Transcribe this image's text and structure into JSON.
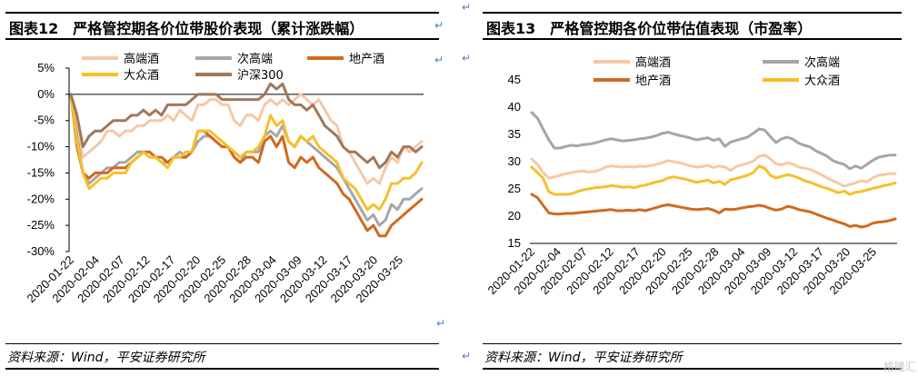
{
  "left_panel": {
    "title": "图表12　严格管控期各价位带股价表现（累计涨跌幅）",
    "source": "资料来源：Wind，平安证券研究所"
  },
  "right_panel": {
    "title": "图表13　严格管控期各价位带估值表现（市盈率）",
    "source": "资料来源：Wind，平安证券研究所"
  },
  "return_mark": "↵",
  "watermark": "格隆汇",
  "chart_data": [
    {
      "type": "line",
      "ylim": [
        -30,
        5
      ],
      "y_ticks": [
        "5%",
        "0%",
        "-5%",
        "-10%",
        "-15%",
        "-20%",
        "-25%",
        "-30%"
      ],
      "y_tick_values": [
        5,
        0,
        -5,
        -10,
        -15,
        -20,
        -25,
        -30
      ],
      "x_ticks": [
        "2020-01-22",
        "2020-02-04",
        "2020-02-07",
        "2020-02-12",
        "2020-02-17",
        "2020-02-20",
        "2020-02-25",
        "2020-02-28",
        "2020-03-04",
        "2020-03-09",
        "2020-03-12",
        "2020-03-17",
        "2020-03-20",
        "2020-03-25"
      ],
      "legend": "top",
      "series": [
        {
          "name": "高端酒",
          "color": "#f7c8a6",
          "values": [
            0,
            -6,
            -12,
            -11,
            -10,
            -9,
            -7,
            -7,
            -8,
            -7,
            -7,
            -6,
            -6,
            -5,
            -5,
            -5,
            -4,
            -5,
            -3,
            -4,
            -5,
            -2,
            -2,
            -1,
            -1,
            -2,
            -2,
            -5,
            -6,
            -4,
            -4,
            -5,
            -2,
            -1,
            -2,
            -1,
            -2,
            -1,
            0,
            -1,
            -2,
            -1,
            -3,
            -5,
            -6,
            -10,
            -11,
            -13,
            -15,
            -17,
            -16,
            -17,
            -14,
            -12,
            -13,
            -10,
            -11,
            -10,
            -9
          ]
        },
        {
          "name": "次高端",
          "color": "#a6a6a6",
          "values": [
            0,
            -8,
            -15,
            -17,
            -16,
            -15,
            -14,
            -14,
            -13,
            -13,
            -12,
            -11,
            -11,
            -12,
            -12,
            -13,
            -13,
            -12,
            -11,
            -12,
            -11,
            -9,
            -8,
            -8,
            -9,
            -10,
            -10,
            -12,
            -13,
            -11,
            -11,
            -11,
            -8,
            -7,
            -8,
            -6,
            -9,
            -10,
            -8,
            -9,
            -10,
            -11,
            -12,
            -13,
            -14,
            -16,
            -18,
            -20,
            -22,
            -24,
            -23,
            -25,
            -24,
            -21,
            -22,
            -20,
            -20,
            -19,
            -18
          ]
        },
        {
          "name": "地产酒",
          "color": "#d2691e",
          "values": [
            0,
            -10,
            -15,
            -16,
            -15,
            -15,
            -15,
            -14,
            -14,
            -14,
            -13,
            -12,
            -11,
            -11,
            -12,
            -12,
            -13,
            -12,
            -12,
            -12,
            -11,
            -7,
            -7,
            -8,
            -9,
            -10,
            -10,
            -12,
            -13,
            -12,
            -12,
            -13,
            -9,
            -8,
            -10,
            -8,
            -13,
            -14,
            -12,
            -13,
            -12,
            -14,
            -15,
            -16,
            -17,
            -19,
            -20,
            -22,
            -24,
            -26,
            -25,
            -27,
            -27,
            -25,
            -24,
            -23,
            -22,
            -21,
            -20
          ]
        },
        {
          "name": "大众酒",
          "color": "#f5c02a",
          "values": [
            0,
            -9,
            -15,
            -18,
            -17,
            -16,
            -16,
            -15,
            -15,
            -15,
            -13,
            -12,
            -11,
            -12,
            -12,
            -13,
            -14,
            -12,
            -12,
            -11,
            -11,
            -7,
            -7,
            -7,
            -8,
            -9,
            -10,
            -11,
            -12,
            -11,
            -11,
            -10,
            -8,
            -4,
            -6,
            -5,
            -9,
            -10,
            -8,
            -9,
            -8,
            -10,
            -11,
            -12,
            -13,
            -16,
            -17,
            -18,
            -20,
            -22,
            -21,
            -22,
            -20,
            -17,
            -17,
            -16,
            -16,
            -15,
            -13
          ]
        },
        {
          "name": "沪深300",
          "color": "#a0785a",
          "values": [
            0,
            -4,
            -10,
            -8,
            -7,
            -7,
            -6,
            -5,
            -5,
            -5,
            -4,
            -4,
            -3,
            -4,
            -3,
            -4,
            -2,
            -2,
            -2,
            -2,
            -1,
            0,
            0,
            0,
            0,
            -1,
            -1,
            -1,
            -1,
            -1,
            -1,
            -1,
            0,
            2,
            1,
            2,
            -1,
            -2,
            -2,
            -3,
            -2,
            -4,
            -6,
            -7,
            -8,
            -10,
            -11,
            -11,
            -12,
            -13,
            -12,
            -14,
            -13,
            -11,
            -12,
            -10,
            -10,
            -11,
            -10
          ]
        }
      ]
    },
    {
      "type": "line",
      "ylim": [
        15,
        45
      ],
      "y_ticks": [
        "45",
        "40",
        "35",
        "30",
        "25",
        "20",
        "15"
      ],
      "y_tick_values": [
        45,
        40,
        35,
        30,
        25,
        20,
        15
      ],
      "x_ticks": [
        "2020-01-22",
        "2020-02-04",
        "2020-02-07",
        "2020-02-12",
        "2020-02-17",
        "2020-02-20",
        "2020-02-25",
        "2020-02-28",
        "2020-03-04",
        "2020-03-09",
        "2020-03-12",
        "2020-03-17",
        "2020-03-20",
        "2020-03-25"
      ],
      "legend": "top",
      "series": [
        {
          "name": "高端酒",
          "color": "#f7c8a6",
          "values": [
            30.5,
            29.5,
            28,
            27,
            27.2,
            27.5,
            27.8,
            28,
            28.2,
            28.3,
            28.1,
            28.2,
            28.5,
            29,
            29.2,
            29.1,
            29,
            29.1,
            29,
            29.2,
            29.1,
            29.3,
            29.5,
            29.8,
            30.2,
            30,
            29.8,
            29.5,
            29.2,
            29,
            29.1,
            29.3,
            28.9,
            29.2,
            29,
            28.4,
            29.1,
            29.4,
            29.7,
            30.1,
            31,
            31.2,
            30.5,
            29.6,
            29.4,
            29.8,
            29.5,
            29,
            28.8,
            28.6,
            28.1,
            27.6,
            27,
            26.5,
            26,
            25.5,
            25.8,
            26.1,
            26.5,
            26.3,
            27,
            27.5,
            27.6,
            27.8,
            27.8
          ]
        },
        {
          "name": "次高端",
          "color": "#a6a6a6",
          "values": [
            39,
            38,
            36,
            34,
            32.5,
            32.5,
            32.8,
            33,
            32.9,
            33.1,
            33.2,
            33.4,
            33.7,
            34,
            34.2,
            34,
            33.8,
            33.9,
            34,
            34.2,
            34.3,
            34.5,
            34.8,
            35.2,
            35.4,
            35.1,
            34.8,
            34.6,
            34.3,
            34,
            34.2,
            34.4,
            33.9,
            34.2,
            32.8,
            33.6,
            33.9,
            34.2,
            34.5,
            35.2,
            36,
            35.8,
            34.6,
            33.5,
            34.2,
            34.5,
            34.1,
            33.4,
            33,
            32.7,
            32,
            31.5,
            31,
            30.2,
            29.8,
            29.5,
            28.7,
            29.2,
            28.8,
            29.5,
            30.2,
            30.8,
            31,
            31.2,
            31.2
          ]
        },
        {
          "name": "地产酒",
          "color": "#d2691e",
          "values": [
            24,
            23.4,
            22,
            20.6,
            20.4,
            20.4,
            20.5,
            20.5,
            20.6,
            20.7,
            20.8,
            20.9,
            21,
            21.1,
            21.2,
            21,
            21,
            21.1,
            21,
            21.2,
            21,
            21.3,
            21.6,
            21.9,
            22.1,
            21.9,
            21.7,
            21.5,
            21.3,
            21.2,
            21.3,
            21.4,
            21.1,
            20.6,
            21.3,
            21.2,
            21.3,
            21.5,
            21.7,
            21.8,
            22,
            21.8,
            21.4,
            21.1,
            21.3,
            21.8,
            21.6,
            21.2,
            21,
            20.8,
            20.4,
            20,
            19.6,
            19.3,
            18.9,
            18.6,
            18.1,
            18.3,
            18,
            18.2,
            18.7,
            18.9,
            19,
            19.2,
            19.5
          ]
        },
        {
          "name": "大众酒",
          "color": "#f5c02a",
          "values": [
            29,
            28,
            27,
            24.5,
            24,
            24,
            24,
            24.1,
            24.5,
            24.8,
            25,
            25.2,
            25.3,
            25.4,
            25.6,
            25.5,
            25.3,
            25.4,
            25.2,
            25.5,
            25.7,
            26,
            26.3,
            26.5,
            27,
            27.2,
            27,
            26.8,
            26.5,
            26.2,
            26.4,
            26.6,
            26.1,
            26.4,
            25.8,
            26.7,
            26.9,
            27.2,
            27.5,
            28,
            29.2,
            28.8,
            27.5,
            27,
            27.3,
            27.6,
            27.4,
            27,
            26.5,
            26.2,
            25.8,
            25.4,
            25.1,
            24.7,
            24.3,
            24.6,
            24,
            24.4,
            24.5,
            24.8,
            25.1,
            25.3,
            25.6,
            25.8,
            26.1
          ]
        }
      ]
    }
  ]
}
